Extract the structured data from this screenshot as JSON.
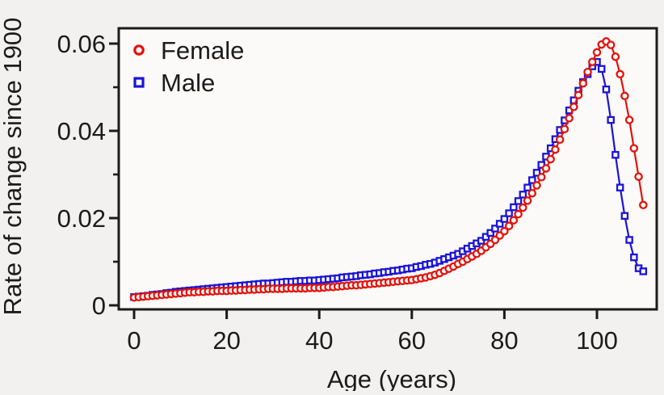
{
  "theme": {
    "background": "#f2f1ef",
    "plot_background": "#fbfaf9",
    "frame_color": "#1b1b1b",
    "text_color": "#1b1b1b"
  },
  "chart_data": {
    "type": "line",
    "title": "",
    "xlabel": "Age (years)",
    "ylabel": "Rate of change since 1900",
    "xlim": [
      -3.3,
      113.3
    ],
    "ylim": [
      -0.001,
      0.0635
    ],
    "grid": false,
    "x_ticks": [
      0,
      20,
      40,
      60,
      80,
      100
    ],
    "x_tick_labels": [
      "0",
      "20",
      "40",
      "60",
      "80",
      "100"
    ],
    "y_ticks": [
      0,
      0.02,
      0.04,
      0.06
    ],
    "y_tick_labels": [
      "0",
      "0.02",
      "0.04",
      "0.06"
    ],
    "y_minor_ticks": [
      0.01,
      0.03,
      0.05
    ],
    "legend": {
      "position": "top-left",
      "entries": [
        {
          "label": "Female",
          "marker": "circle-icon",
          "color": "#e3120b"
        },
        {
          "label": "Male",
          "marker": "square-icon",
          "color": "#1a13d6"
        }
      ]
    },
    "x": [
      0,
      1,
      2,
      3,
      4,
      5,
      6,
      7,
      8,
      9,
      10,
      11,
      12,
      13,
      14,
      15,
      16,
      17,
      18,
      19,
      20,
      21,
      22,
      23,
      24,
      25,
      26,
      27,
      28,
      29,
      30,
      31,
      32,
      33,
      34,
      35,
      36,
      37,
      38,
      39,
      40,
      41,
      42,
      43,
      44,
      45,
      46,
      47,
      48,
      49,
      50,
      51,
      52,
      53,
      54,
      55,
      56,
      57,
      58,
      59,
      60,
      61,
      62,
      63,
      64,
      65,
      66,
      67,
      68,
      69,
      70,
      71,
      72,
      73,
      74,
      75,
      76,
      77,
      78,
      79,
      80,
      81,
      82,
      83,
      84,
      85,
      86,
      87,
      88,
      89,
      90,
      91,
      92,
      93,
      94,
      95,
      96,
      97,
      98,
      99,
      100,
      101,
      102,
      103,
      104,
      105,
      106,
      107,
      108,
      109,
      110
    ],
    "series": [
      {
        "name": "Female",
        "marker": "circle",
        "color": "#e3120b",
        "values": [
          0.0018,
          0.0019,
          0.002,
          0.0021,
          0.0022,
          0.0023,
          0.0024,
          0.0025,
          0.0026,
          0.0027,
          0.0028,
          0.0029,
          0.003,
          0.003,
          0.0031,
          0.0031,
          0.0032,
          0.0032,
          0.0033,
          0.0033,
          0.0033,
          0.0034,
          0.0034,
          0.0035,
          0.0035,
          0.0036,
          0.0036,
          0.0037,
          0.0037,
          0.0038,
          0.0038,
          0.0038,
          0.0038,
          0.0039,
          0.0039,
          0.0039,
          0.0039,
          0.0039,
          0.004,
          0.004,
          0.004,
          0.0041,
          0.0042,
          0.0042,
          0.0043,
          0.0044,
          0.0045,
          0.0046,
          0.0046,
          0.0047,
          0.0048,
          0.0049,
          0.005,
          0.0051,
          0.0052,
          0.0053,
          0.0054,
          0.0055,
          0.0056,
          0.0057,
          0.0058,
          0.006,
          0.0062,
          0.0064,
          0.0067,
          0.007,
          0.0074,
          0.0079,
          0.0084,
          0.0089,
          0.0095,
          0.01,
          0.0106,
          0.0112,
          0.0118,
          0.0125,
          0.0133,
          0.0141,
          0.015,
          0.016,
          0.017,
          0.0182,
          0.0195,
          0.0209,
          0.0224,
          0.024,
          0.0257,
          0.0275,
          0.0294,
          0.0314,
          0.0335,
          0.0357,
          0.038,
          0.0404,
          0.0429,
          0.0455,
          0.0482,
          0.0509,
          0.0535,
          0.0558,
          0.058,
          0.0598,
          0.0605,
          0.0597,
          0.057,
          0.053,
          0.048,
          0.0425,
          0.036,
          0.0295,
          0.023
        ]
      },
      {
        "name": "Male",
        "marker": "square",
        "color": "#1a13d6",
        "values": [
          0.0019,
          0.002,
          0.0021,
          0.0022,
          0.0024,
          0.0025,
          0.0026,
          0.0028,
          0.0029,
          0.0031,
          0.0032,
          0.0033,
          0.0034,
          0.0035,
          0.0036,
          0.0037,
          0.0038,
          0.0039,
          0.004,
          0.0041,
          0.0042,
          0.0043,
          0.0044,
          0.0045,
          0.0046,
          0.0047,
          0.0048,
          0.0049,
          0.005,
          0.005,
          0.0051,
          0.0052,
          0.0053,
          0.0054,
          0.0054,
          0.0055,
          0.0056,
          0.0056,
          0.0057,
          0.0057,
          0.0058,
          0.0059,
          0.006,
          0.0061,
          0.0062,
          0.0064,
          0.0065,
          0.0066,
          0.0067,
          0.0069,
          0.007,
          0.0071,
          0.0073,
          0.0074,
          0.0076,
          0.0077,
          0.0079,
          0.008,
          0.0082,
          0.0084,
          0.0085,
          0.0088,
          0.009,
          0.0093,
          0.0095,
          0.0098,
          0.0102,
          0.0106,
          0.011,
          0.0114,
          0.0118,
          0.0124,
          0.013,
          0.0136,
          0.0142,
          0.0148,
          0.0157,
          0.0166,
          0.0176,
          0.0187,
          0.0198,
          0.0211,
          0.0225,
          0.0239,
          0.0254,
          0.027,
          0.0287,
          0.0304,
          0.0322,
          0.0341,
          0.036,
          0.0381,
          0.0402,
          0.0424,
          0.0447,
          0.047,
          0.0492,
          0.0512,
          0.053,
          0.0548,
          0.0558,
          0.0542,
          0.0495,
          0.0425,
          0.0345,
          0.027,
          0.0205,
          0.015,
          0.011,
          0.0085,
          0.0078
        ]
      }
    ]
  }
}
